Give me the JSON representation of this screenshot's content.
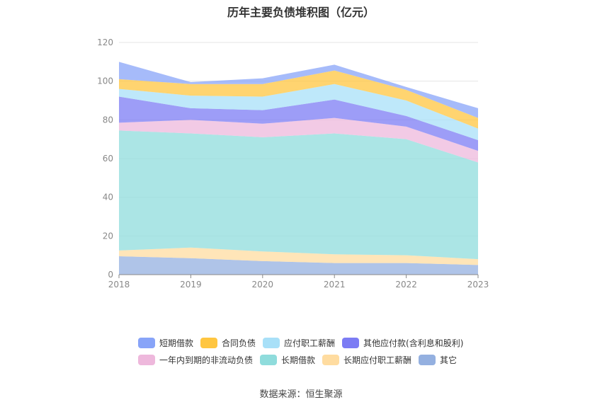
{
  "chart_data": {
    "type": "area",
    "stacked": true,
    "title": "历年主要负债堆积图（亿元）",
    "x": [
      "2018",
      "2019",
      "2020",
      "2021",
      "2022",
      "2023"
    ],
    "ylim": [
      0,
      120
    ],
    "yticks": [
      0,
      20,
      40,
      60,
      80,
      100,
      120
    ],
    "grid": true,
    "legend_position": "bottom",
    "series": [
      {
        "name": "其它",
        "color": "#94b0e0",
        "values": [
          9.5,
          8.5,
          7.0,
          6.0,
          6.0,
          5.0
        ]
      },
      {
        "name": "长期应付职工薪酬",
        "color": "#ffdca0",
        "values": [
          3.0,
          5.5,
          5.0,
          4.5,
          4.0,
          3.0
        ]
      },
      {
        "name": "长期借款",
        "color": "#8fdcdc",
        "values": [
          62.0,
          59.0,
          59.0,
          62.5,
          60.0,
          50.0
        ]
      },
      {
        "name": "一年内到期的非流动负债",
        "color": "#eeb8dc",
        "values": [
          4.0,
          7.0,
          7.0,
          8.0,
          6.5,
          6.0
        ]
      },
      {
        "name": "其他应付款(含利息和股利)",
        "color": "#7c7cf4",
        "values": [
          13.5,
          6.0,
          7.0,
          9.5,
          5.5,
          5.5
        ]
      },
      {
        "name": "应付职工薪酬",
        "color": "#a8e0f8",
        "values": [
          4.0,
          6.5,
          7.0,
          8.0,
          8.0,
          6.0
        ]
      },
      {
        "name": "合同负债",
        "color": "#ffc640",
        "values": [
          5.0,
          6.0,
          6.5,
          7.0,
          5.5,
          5.5
        ]
      },
      {
        "name": "短期借款",
        "color": "#88a4f8",
        "values": [
          9.0,
          1.0,
          3.0,
          3.0,
          1.5,
          5.0
        ]
      }
    ]
  },
  "legend": {
    "row1": [
      {
        "name": "短期借款",
        "color": "#88a4f8"
      },
      {
        "name": "合同负债",
        "color": "#ffc640"
      },
      {
        "name": "应付职工薪酬",
        "color": "#a8e0f8"
      },
      {
        "name": "其他应付款(含利息和股利)",
        "color": "#7c7cf4"
      }
    ],
    "row2": [
      {
        "name": "一年内到期的非流动负债",
        "color": "#eeb8dc"
      },
      {
        "name": "长期借款",
        "color": "#8fdcdc"
      },
      {
        "name": "长期应付职工薪酬",
        "color": "#ffdca0"
      },
      {
        "name": "其它",
        "color": "#94b0e0"
      }
    ]
  },
  "source": "数据来源：恒生聚源"
}
